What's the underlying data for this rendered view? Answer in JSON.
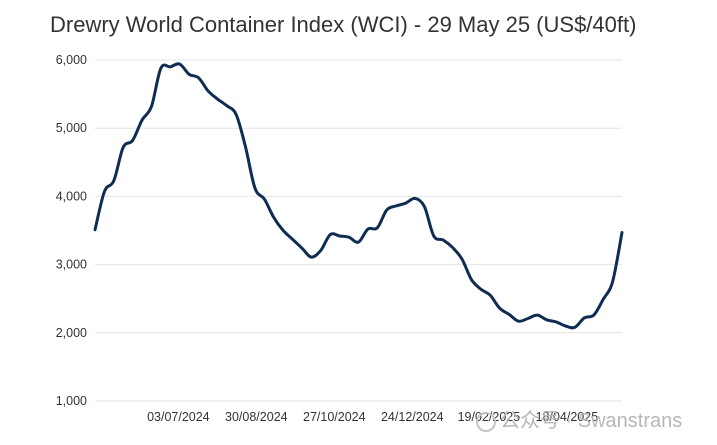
{
  "chart_data": {
    "type": "line",
    "title": "Drewry World Container Index (WCI) - 29 May 25 (US$/40ft)",
    "xlabel": "",
    "ylabel": "",
    "y_ticks": [
      "1,000",
      "2,000",
      "3,000",
      "4,000",
      "5,000",
      "6,000"
    ],
    "x_ticks": [
      "03/07/2024",
      "30/08/2024",
      "27/10/2024",
      "24/12/2024",
      "19/02/2025",
      "18/04/2025"
    ],
    "ylim": [
      1000,
      6000
    ],
    "grid": "horizontal",
    "line_color": "#0f2d52",
    "series": [
      {
        "x": [
          "2024-05-02",
          "2024-05-09",
          "2024-05-16",
          "2024-05-23",
          "2024-05-30",
          "2024-06-06",
          "2024-06-13",
          "2024-06-20",
          "2024-06-27",
          "2024-07-04",
          "2024-07-11",
          "2024-07-18",
          "2024-07-25",
          "2024-08-01",
          "2024-08-08",
          "2024-08-15",
          "2024-08-22",
          "2024-08-29",
          "2024-09-05",
          "2024-09-12",
          "2024-09-19",
          "2024-09-26",
          "2024-10-03",
          "2024-10-10",
          "2024-10-17",
          "2024-10-24",
          "2024-10-31",
          "2024-11-07",
          "2024-11-14",
          "2024-11-21",
          "2024-11-28",
          "2024-12-05",
          "2024-12-12",
          "2024-12-19",
          "2024-12-26",
          "2025-01-02",
          "2025-01-09",
          "2025-01-16",
          "2025-01-23",
          "2025-01-30",
          "2025-02-06",
          "2025-02-13",
          "2025-02-20",
          "2025-02-27",
          "2025-03-06",
          "2025-03-13",
          "2025-03-20",
          "2025-03-27",
          "2025-04-03",
          "2025-04-10",
          "2025-04-17",
          "2025-04-24",
          "2025-05-01",
          "2025-05-08",
          "2025-05-15",
          "2025-05-22",
          "2025-05-29"
        ],
        "values": [
          3510,
          4070,
          4230,
          4720,
          4820,
          5120,
          5320,
          5880,
          5900,
          5940,
          5790,
          5740,
          5550,
          5430,
          5330,
          5200,
          4720,
          4120,
          3960,
          3690,
          3500,
          3370,
          3240,
          3110,
          3210,
          3440,
          3420,
          3400,
          3330,
          3520,
          3540,
          3800,
          3860,
          3900,
          3970,
          3850,
          3420,
          3360,
          3250,
          3080,
          2780,
          2640,
          2550,
          2360,
          2270,
          2170,
          2210,
          2260,
          2190,
          2160,
          2100,
          2080,
          2220,
          2260,
          2490,
          2750,
          3470
        ]
      }
    ]
  },
  "watermark": "公众号 · Swanstrans"
}
